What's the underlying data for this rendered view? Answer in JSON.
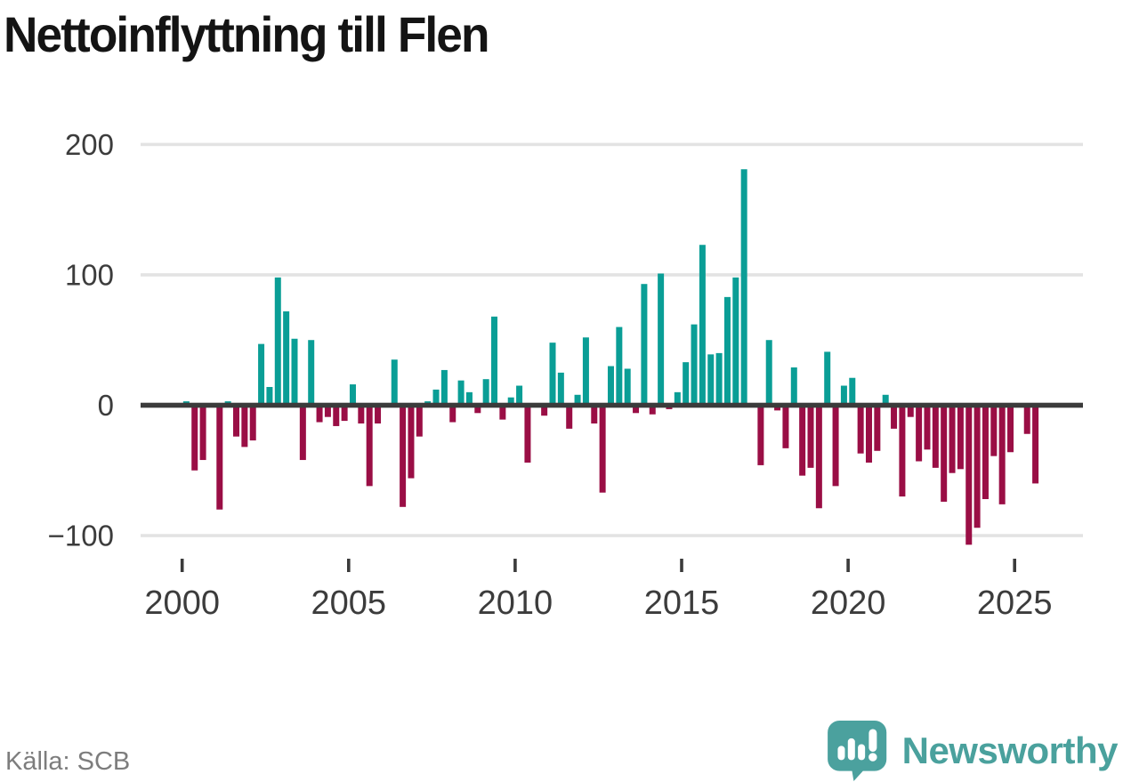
{
  "title": "Nettoinflyttning till Flen",
  "source_label": "Källa: SCB",
  "logo": {
    "text": "Newsworthy",
    "icon": "speech-bubble-bar-chart-exclamation"
  },
  "colors": {
    "positive_bar": "#0a9e96",
    "negative_bar": "#9a0e45",
    "zero_axis": "#3b3b3b",
    "gridline": "#e3e3e3",
    "tick_label": "#3c3c3c",
    "title_text": "#141414",
    "source_text": "#7d7d7d",
    "logo_teal": "#4ba19e",
    "background": "#ffffff"
  },
  "chart_data": {
    "type": "bar",
    "title": "Nettoinflyttning till Flen",
    "xlabel": "",
    "ylabel": "",
    "y_ticks": [
      200,
      100,
      0,
      -100
    ],
    "ylim": [
      -120,
      215
    ],
    "x_ticks": [
      2000,
      2005,
      2010,
      2015,
      2020,
      2025
    ],
    "grid": "horizontal",
    "legend": "none",
    "frequency": "quarterly",
    "points": [
      [
        "2000Q1",
        3
      ],
      [
        "2000Q2",
        -50
      ],
      [
        "2000Q3",
        -42
      ],
      [
        "2000Q4",
        0
      ],
      [
        "2001Q1",
        -80
      ],
      [
        "2001Q2",
        3
      ],
      [
        "2001Q3",
        -24
      ],
      [
        "2001Q4",
        -32
      ],
      [
        "2002Q1",
        -27
      ],
      [
        "2002Q2",
        47
      ],
      [
        "2002Q3",
        14
      ],
      [
        "2002Q4",
        98
      ],
      [
        "2003Q1",
        72
      ],
      [
        "2003Q2",
        51
      ],
      [
        "2003Q3",
        -42
      ],
      [
        "2003Q4",
        50
      ],
      [
        "2004Q1",
        -13
      ],
      [
        "2004Q2",
        -9
      ],
      [
        "2004Q3",
        -16
      ],
      [
        "2004Q4",
        -12
      ],
      [
        "2005Q1",
        16
      ],
      [
        "2005Q2",
        -14
      ],
      [
        "2005Q3",
        -62
      ],
      [
        "2005Q4",
        -14
      ],
      [
        "2006Q1",
        0
      ],
      [
        "2006Q2",
        35
      ],
      [
        "2006Q3",
        -78
      ],
      [
        "2006Q4",
        -56
      ],
      [
        "2007Q1",
        -24
      ],
      [
        "2007Q2",
        3
      ],
      [
        "2007Q3",
        12
      ],
      [
        "2007Q4",
        27
      ],
      [
        "2008Q1",
        -13
      ],
      [
        "2008Q2",
        19
      ],
      [
        "2008Q3",
        10
      ],
      [
        "2008Q4",
        -6
      ],
      [
        "2009Q1",
        20
      ],
      [
        "2009Q2",
        68
      ],
      [
        "2009Q3",
        -11
      ],
      [
        "2009Q4",
        6
      ],
      [
        "2010Q1",
        15
      ],
      [
        "2010Q2",
        -44
      ],
      [
        "2010Q3",
        0
      ],
      [
        "2010Q4",
        -8
      ],
      [
        "2011Q1",
        48
      ],
      [
        "2011Q2",
        25
      ],
      [
        "2011Q3",
        -18
      ],
      [
        "2011Q4",
        8
      ],
      [
        "2012Q1",
        52
      ],
      [
        "2012Q2",
        -14
      ],
      [
        "2012Q3",
        -67
      ],
      [
        "2012Q4",
        30
      ],
      [
        "2013Q1",
        60
      ],
      [
        "2013Q2",
        28
      ],
      [
        "2013Q3",
        -6
      ],
      [
        "2013Q4",
        93
      ],
      [
        "2014Q1",
        -7
      ],
      [
        "2014Q2",
        101
      ],
      [
        "2014Q3",
        -3
      ],
      [
        "2014Q4",
        10
      ],
      [
        "2015Q1",
        33
      ],
      [
        "2015Q2",
        62
      ],
      [
        "2015Q3",
        123
      ],
      [
        "2015Q4",
        39
      ],
      [
        "2016Q1",
        40
      ],
      [
        "2016Q2",
        83
      ],
      [
        "2016Q3",
        98
      ],
      [
        "2016Q4",
        181
      ],
      [
        "2017Q1",
        0
      ],
      [
        "2017Q2",
        -46
      ],
      [
        "2017Q3",
        50
      ],
      [
        "2017Q4",
        -4
      ],
      [
        "2018Q1",
        -33
      ],
      [
        "2018Q2",
        29
      ],
      [
        "2018Q3",
        -54
      ],
      [
        "2018Q4",
        -48
      ],
      [
        "2019Q1",
        -79
      ],
      [
        "2019Q2",
        41
      ],
      [
        "2019Q3",
        -62
      ],
      [
        "2019Q4",
        15
      ],
      [
        "2020Q1",
        21
      ],
      [
        "2020Q2",
        -37
      ],
      [
        "2020Q3",
        -44
      ],
      [
        "2020Q4",
        -35
      ],
      [
        "2021Q1",
        8
      ],
      [
        "2021Q2",
        -18
      ],
      [
        "2021Q3",
        -70
      ],
      [
        "2021Q4",
        -9
      ],
      [
        "2022Q1",
        -43
      ],
      [
        "2022Q2",
        -34
      ],
      [
        "2022Q3",
        -48
      ],
      [
        "2022Q4",
        -74
      ],
      [
        "2023Q1",
        -52
      ],
      [
        "2023Q2",
        -49
      ],
      [
        "2023Q3",
        -107
      ],
      [
        "2023Q4",
        -94
      ],
      [
        "2024Q1",
        -72
      ],
      [
        "2024Q2",
        -39
      ],
      [
        "2024Q3",
        -76
      ],
      [
        "2024Q4",
        -36
      ],
      [
        "2025Q1",
        0
      ],
      [
        "2025Q2",
        -22
      ],
      [
        "2025Q3",
        -60
      ]
    ]
  }
}
